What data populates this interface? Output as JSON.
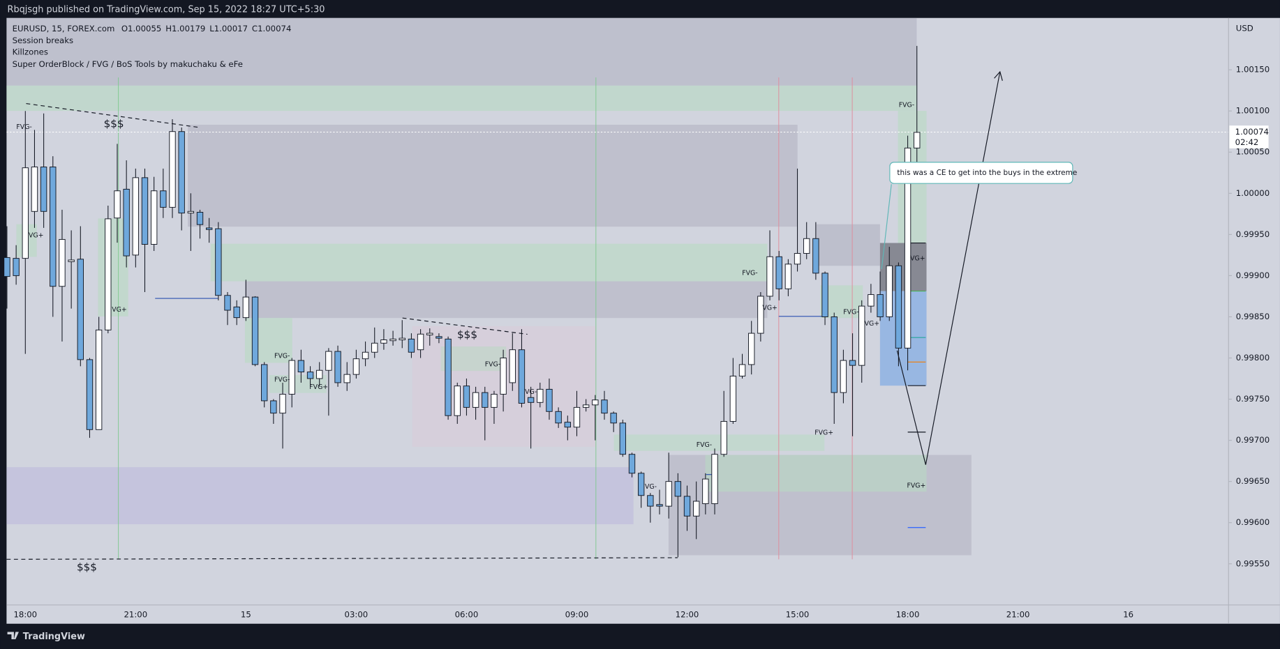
{
  "header": {
    "published": "Rbqjsgh published on TradingView.com, Sep 15, 2022 18:27 UTC+5:30",
    "indicators": [
      "Session breaks",
      "Killzones",
      "Super OrderBlock / FVG / BoS Tools by makuchaku & eFe"
    ],
    "countdown": "02:42",
    "currency": "USD"
  },
  "footer": {
    "brand": "TradingView"
  },
  "annotations": [
    "FVG-",
    "$$$",
    "VG+",
    "VG+",
    "FVG-",
    "FVG-",
    "FVG+",
    "$$$",
    "FVG-",
    "VG-",
    "VG-",
    "FVG-",
    "FVG-",
    "VG+",
    "FVG+",
    "FVG-",
    "VG+",
    "FVG-",
    "VG+",
    "FVG+",
    "$$$"
  ],
  "callout": "this was a CE to get into the buys in the extreme",
  "chart_data": {
    "type": "candlestick",
    "symbol": "EURUSD, 15, FOREX.com",
    "ohlc_labels": [
      "O",
      "H",
      "L",
      "C"
    ],
    "up_color": "#ffffff",
    "down_color": "#6fa8dc",
    "edge_color": "#131722",
    "categories": [
      null,
      null,
      "18:00",
      null,
      null,
      null,
      null,
      null,
      null,
      null,
      null,
      null,
      null,
      null,
      "21:00",
      null,
      null,
      null,
      null,
      null,
      null,
      null,
      null,
      null,
      null,
      null,
      "15",
      null,
      null,
      null,
      null,
      null,
      null,
      null,
      null,
      null,
      null,
      null,
      "03:00",
      null,
      null,
      null,
      null,
      null,
      null,
      null,
      null,
      null,
      null,
      null,
      "06:00",
      null,
      null,
      null,
      null,
      null,
      null,
      null,
      null,
      null,
      null,
      null,
      "09:00",
      null,
      null,
      null,
      null,
      null,
      null,
      null,
      null,
      null,
      null,
      null,
      "12:00",
      null,
      null,
      null,
      null,
      null,
      null,
      null,
      null,
      null,
      null,
      null,
      "15:00",
      null,
      null,
      null,
      null,
      null,
      null,
      null,
      null,
      null,
      null,
      null,
      "18:00",
      null,
      null,
      null,
      null,
      null,
      null,
      null,
      null,
      null,
      null,
      null,
      "21:00",
      null,
      null,
      null,
      null,
      null,
      null,
      null,
      null,
      null,
      null,
      null,
      "16"
    ],
    "open": [
      0.99922,
      0.99921,
      0.99921,
      0.99978,
      1.00032,
      1.00032,
      0.99887,
      0.99917,
      0.9992,
      0.99798,
      0.99713,
      0.99834,
      0.9997,
      1.00005,
      0.99925,
      1.00019,
      0.99938,
      1.00003,
      0.99983,
      1.00075,
      0.99976,
      0.99977,
      0.99958,
      0.99957,
      0.99876,
      0.99862,
      0.99849,
      0.99874,
      0.99792,
      0.99748,
      0.99733,
      0.99756,
      0.99797,
      0.99783,
      0.99775,
      0.99785,
      0.99808,
      0.9977,
      0.9978,
      0.99799,
      0.99807,
      0.99818,
      0.99821,
      0.99822,
      0.99823,
      0.9981,
      0.99828,
      0.99826,
      0.99823,
      0.9973,
      0.99766,
      0.9974,
      0.99758,
      0.9974,
      0.99756,
      0.9977,
      0.9981,
      0.99752,
      0.99746,
      0.99762,
      0.99735,
      0.99722,
      0.99716,
      0.9974,
      0.99743,
      0.99749,
      0.99733,
      0.99721,
      0.99683,
      0.9966,
      0.99633,
      0.99622,
      0.9962,
      0.9965,
      0.99632,
      0.99608,
      0.99623,
      0.99623,
      0.99683,
      0.99723,
      0.99778,
      0.99792,
      0.9983,
      0.99875,
      0.99923,
      0.99884,
      0.99914,
      0.99927,
      0.99945,
      0.99903,
      0.9985,
      0.99758,
      0.99797,
      0.99791,
      0.99863,
      0.99877,
      0.9985,
      0.99912,
      0.99812,
      1.00055,
      null,
      null,
      null,
      null,
      null,
      null,
      null,
      null,
      null,
      null,
      null,
      null,
      null,
      null,
      null,
      null,
      null,
      null,
      null,
      null,
      null,
      null,
      null
    ],
    "high": [
      0.9996,
      0.99937,
      1.001,
      1.00077,
      1.00097,
      1.00045,
      0.9998,
      0.99955,
      0.9996,
      0.998,
      0.9985,
      0.99985,
      1.0006,
      1.0004,
      1.0003,
      1.0003,
      1.0002,
      1.0003,
      1.0009,
      1.0008,
      1.0,
      0.9998,
      0.9997,
      0.99965,
      0.9988,
      0.9987,
      0.99895,
      0.99875,
      0.99795,
      0.9975,
      0.9977,
      0.998,
      0.9981,
      0.9979,
      0.99795,
      0.99812,
      0.99815,
      0.99795,
      0.9981,
      0.9982,
      0.99837,
      0.99835,
      0.99833,
      0.99846,
      0.9983,
      0.99835,
      0.99836,
      0.9983,
      0.99826,
      0.9977,
      0.99775,
      0.99765,
      0.99765,
      0.9976,
      0.9981,
      0.9983,
      0.99835,
      0.99765,
      0.9977,
      0.99775,
      0.9974,
      0.9973,
      0.9976,
      0.9975,
      0.99755,
      0.9976,
      0.99735,
      0.99725,
      0.99685,
      0.99662,
      0.99636,
      0.9964,
      0.99685,
      0.9966,
      0.99645,
      0.9965,
      0.9966,
      0.9969,
      0.9976,
      0.998,
      0.99805,
      0.99845,
      0.9988,
      0.99955,
      0.9993,
      0.9992,
      1.0003,
      0.99965,
      0.99965,
      0.99905,
      0.99855,
      0.9981,
      0.9983,
      0.9987,
      0.9989,
      0.99905,
      0.99935,
      0.99916,
      1.0007,
      1.00179,
      null,
      null,
      null,
      null,
      null,
      null,
      null,
      null,
      null,
      null,
      null,
      null,
      null,
      null,
      null,
      null,
      null,
      null,
      null,
      null,
      null,
      null,
      null
    ],
    "low": [
      0.9986,
      0.99889,
      0.99805,
      0.99958,
      0.99958,
      0.9985,
      0.9982,
      0.9986,
      0.9979,
      0.99703,
      0.99713,
      0.9983,
      0.9994,
      0.9991,
      0.9991,
      0.9988,
      0.9993,
      0.9997,
      0.9997,
      0.99955,
      0.9993,
      0.99945,
      0.9994,
      0.9987,
      0.9984,
      0.9984,
      0.99845,
      0.9979,
      0.9974,
      0.9972,
      0.9969,
      0.9974,
      0.9977,
      0.99765,
      0.99765,
      0.9973,
      0.99765,
      0.9976,
      0.99775,
      0.9979,
      0.998,
      0.9981,
      0.99815,
      0.99812,
      0.998,
      0.998,
      0.99815,
      0.99818,
      0.99725,
      0.9972,
      0.9973,
      0.99725,
      0.997,
      0.9972,
      0.99735,
      0.9976,
      0.9974,
      0.9969,
      0.9974,
      0.99725,
      0.99715,
      0.997,
      0.99705,
      0.99735,
      0.997,
      0.99725,
      0.9971,
      0.9968,
      0.99655,
      0.99618,
      0.996,
      0.9961,
      0.99605,
      0.99558,
      0.9959,
      0.9958,
      0.9961,
      0.9961,
      0.9968,
      0.9972,
      0.99775,
      0.9978,
      0.9982,
      0.9987,
      0.9987,
      0.99875,
      0.99905,
      0.9992,
      0.99895,
      0.9984,
      0.9972,
      0.99745,
      0.99705,
      0.9977,
      0.99855,
      0.99845,
      0.99845,
      0.9979,
      0.99785,
      1.00017,
      null,
      null,
      null,
      null,
      null,
      null,
      null,
      null,
      null,
      null,
      null,
      null,
      null,
      null,
      null,
      null,
      null,
      null,
      null,
      null,
      null,
      null,
      null
    ],
    "close": [
      0.99899,
      0.999,
      1.00031,
      1.00032,
      0.99978,
      0.99887,
      0.99944,
      0.99919,
      0.99798,
      0.99713,
      0.99834,
      0.99969,
      1.00003,
      0.99924,
      1.00019,
      0.99938,
      1.00003,
      0.99983,
      1.00075,
      0.99976,
      0.99978,
      0.99962,
      0.99956,
      0.99876,
      0.99858,
      0.99849,
      0.99874,
      0.99792,
      0.99748,
      0.99733,
      0.99756,
      0.99797,
      0.99783,
      0.99775,
      0.99785,
      0.99808,
      0.9977,
      0.9978,
      0.99799,
      0.99807,
      0.99818,
      0.99822,
      0.99823,
      0.99824,
      0.99807,
      0.99829,
      0.9983,
      0.99824,
      0.9973,
      0.99766,
      0.9974,
      0.99758,
      0.9974,
      0.99756,
      0.998,
      0.9981,
      0.99745,
      0.99746,
      0.99762,
      0.99735,
      0.99721,
      0.99716,
      0.9974,
      0.99743,
      0.99749,
      0.99733,
      0.99721,
      0.99683,
      0.9966,
      0.99633,
      0.9962,
      0.9962,
      0.9965,
      0.99632,
      0.99608,
      0.99626,
      0.99653,
      0.99683,
      0.99723,
      0.99778,
      0.99792,
      0.9983,
      0.99875,
      0.99923,
      0.99884,
      0.99914,
      0.99927,
      0.99945,
      0.99903,
      0.9985,
      0.99758,
      0.99797,
      0.99791,
      0.99863,
      0.99877,
      0.9985,
      0.99912,
      0.99812,
      1.00055,
      1.00074,
      null,
      null,
      null,
      null,
      null,
      null,
      null,
      null,
      null,
      null,
      null,
      null,
      null,
      null,
      null,
      null,
      null,
      null,
      null,
      null,
      null,
      null,
      null
    ],
    "ylim": [
      0.995,
      1.00213
    ],
    "yticks": [
      {
        "value": 0.9955,
        "label": "0.99550"
      },
      {
        "value": 0.996,
        "label": "0.99600"
      },
      {
        "value": 0.9965,
        "label": "0.99650"
      },
      {
        "value": 0.997,
        "label": "0.99700"
      },
      {
        "value": 0.9975,
        "label": "0.99750"
      },
      {
        "value": 0.998,
        "label": "0.99800"
      },
      {
        "value": 0.9985,
        "label": "0.99850"
      },
      {
        "value": 0.999,
        "label": "0.99900"
      },
      {
        "value": 0.9995,
        "label": "0.99950"
      },
      {
        "value": 1.0,
        "label": "1.00000"
      },
      {
        "value": 1.0005,
        "label": "1.00050"
      },
      {
        "value": 1.001,
        "label": "1.00100"
      },
      {
        "value": 1.0015,
        "label": "1.00150"
      }
    ],
    "grid": false
  }
}
